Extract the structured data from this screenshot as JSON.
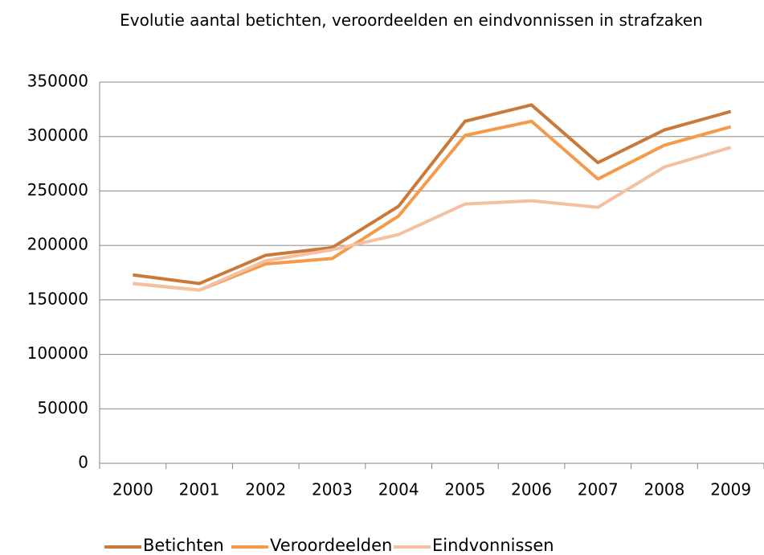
{
  "chart_data": {
    "type": "line",
    "title": "Evolutie aantal betichten, veroordeelden en eindvonnissen in strafzaken",
    "categories": [
      "2000",
      "2001",
      "2002",
      "2003",
      "2004",
      "2005",
      "2006",
      "2007",
      "2008",
      "2009"
    ],
    "series": [
      {
        "name": "Betichten",
        "color": "#c97a3a",
        "values": [
          173000,
          165000,
          191000,
          198000,
          236000,
          314000,
          329000,
          276000,
          306000,
          323000
        ]
      },
      {
        "name": "Veroordeelden",
        "color": "#f59a4a",
        "values": [
          165000,
          159000,
          183000,
          188000,
          227000,
          301000,
          314000,
          261000,
          292000,
          309000
        ]
      },
      {
        "name": "Eindvonnissen",
        "color": "#f5c0a0",
        "values": [
          165000,
          159000,
          186000,
          196000,
          210000,
          238000,
          241000,
          235000,
          272000,
          290000
        ]
      }
    ],
    "ylim": [
      0,
      350000
    ],
    "yticks": [
      0,
      50000,
      100000,
      150000,
      200000,
      250000,
      300000,
      350000
    ],
    "grid": true,
    "legend": "bottom"
  }
}
